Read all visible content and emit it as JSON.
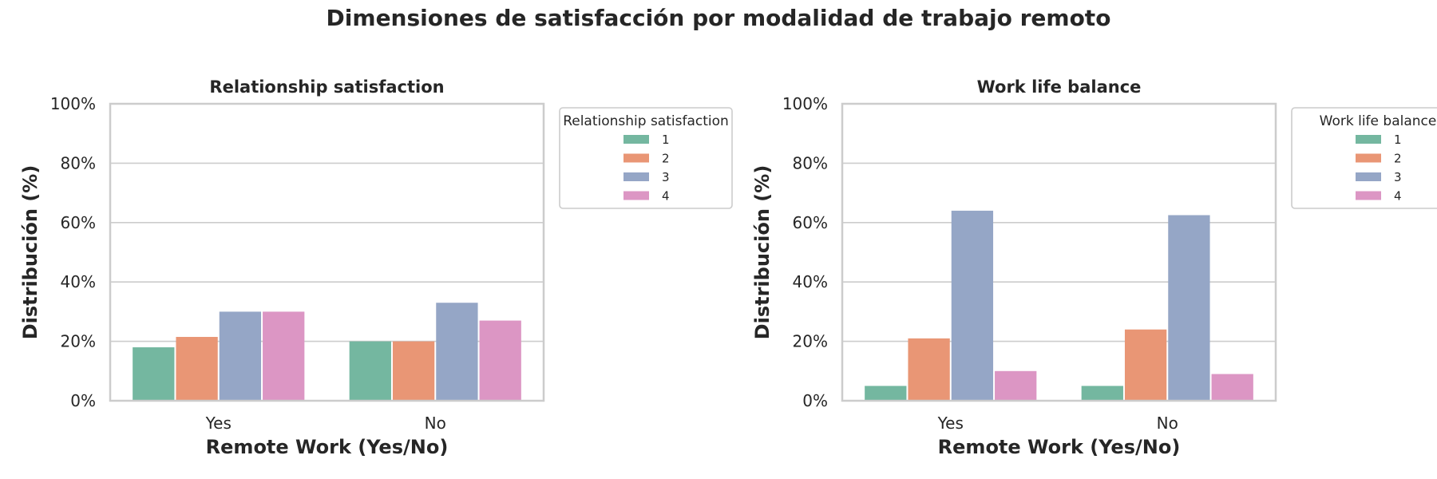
{
  "suptitle": "Dimensiones de satisfacción por modalidad de trabajo remoto",
  "colors": {
    "1": "#74b7a0",
    "2": "#e99675",
    "3": "#95a6c6",
    "4": "#dc96c4",
    "grid": "#cccccc",
    "frame": "#cccccc"
  },
  "chart_data": [
    {
      "type": "bar",
      "title": "Relationship satisfaction",
      "xlabel": "Remote Work (Yes/No)",
      "ylabel": "Distribución (%)",
      "categories": [
        "Yes",
        "No"
      ],
      "ylim": [
        0,
        100
      ],
      "yticks": [
        "0%",
        "20%",
        "40%",
        "60%",
        "80%",
        "100%"
      ],
      "grid": true,
      "legend": {
        "title": "Relationship satisfaction",
        "position": "outside-right"
      },
      "series": [
        {
          "name": "1",
          "values": [
            18,
            20
          ]
        },
        {
          "name": "2",
          "values": [
            21.5,
            20
          ]
        },
        {
          "name": "3",
          "values": [
            30,
            33
          ]
        },
        {
          "name": "4",
          "values": [
            30,
            27
          ]
        }
      ]
    },
    {
      "type": "bar",
      "title": "Work life balance",
      "xlabel": "Remote Work (Yes/No)",
      "ylabel": "Distribución (%)",
      "categories": [
        "Yes",
        "No"
      ],
      "ylim": [
        0,
        100
      ],
      "yticks": [
        "0%",
        "20%",
        "40%",
        "60%",
        "80%",
        "100%"
      ],
      "grid": true,
      "legend": {
        "title": "Work life balance",
        "position": "outside-right"
      },
      "series": [
        {
          "name": "1",
          "values": [
            5,
            5
          ]
        },
        {
          "name": "2",
          "values": [
            21,
            24
          ]
        },
        {
          "name": "3",
          "values": [
            64,
            62.5
          ]
        },
        {
          "name": "4",
          "values": [
            10,
            9
          ]
        }
      ]
    }
  ]
}
